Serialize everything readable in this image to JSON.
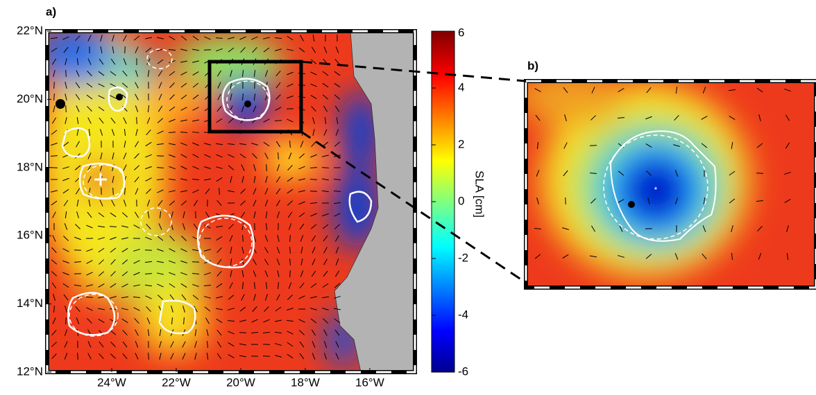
{
  "panel_a": {
    "label": "a)",
    "xlim": [
      -26,
      -14.6
    ],
    "ylim": [
      12,
      22
    ],
    "xticks": [
      {
        "value": -24,
        "label": "24°W"
      },
      {
        "value": -22,
        "label": "22°W"
      },
      {
        "value": -20,
        "label": "20°W"
      },
      {
        "value": -18,
        "label": "18°W"
      },
      {
        "value": -16,
        "label": "16°W"
      }
    ],
    "yticks": [
      {
        "value": 12,
        "label": "12°N"
      },
      {
        "value": 14,
        "label": "14°N"
      },
      {
        "value": 16,
        "label": "16°N"
      },
      {
        "value": 18,
        "label": "18°N"
      },
      {
        "value": 20,
        "label": "20°N"
      },
      {
        "value": 22,
        "label": "22°N"
      }
    ]
  },
  "colorbar": {
    "label": "SLA [cm]",
    "lim": [
      -6,
      6
    ],
    "ticks": [
      6,
      4,
      2,
      0,
      -2,
      -4,
      -6
    ]
  },
  "panel_b": {
    "label": "b)"
  }
}
